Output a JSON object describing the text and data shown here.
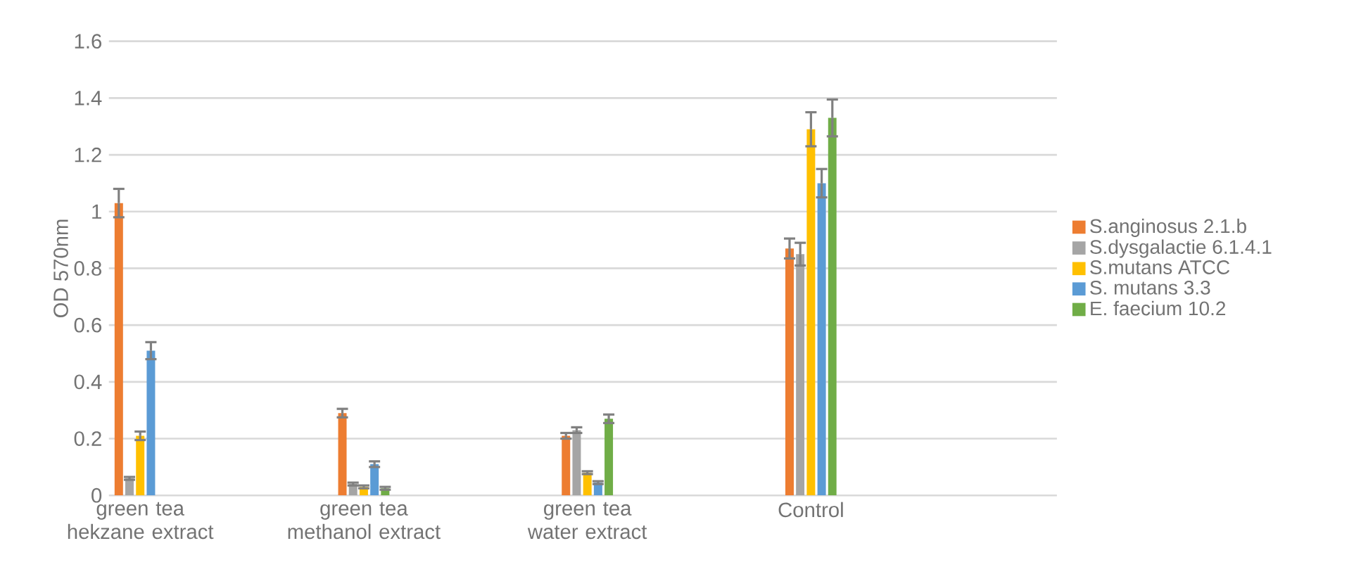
{
  "chart_data": {
    "type": "bar",
    "ylabel": "OD 570nm",
    "categories": [
      "green tea hekzane extract",
      "green tea methanol extract",
      "green tea water extract",
      "Control"
    ],
    "series": [
      {
        "name": "S.anginosus 2.1.b",
        "color": "#ed7d31",
        "values": [
          1.03,
          0.29,
          0.21,
          0.87
        ],
        "errors": [
          0.05,
          0.015,
          0.01,
          0.035
        ]
      },
      {
        "name": "S.dysgalactie 6.1.4.1",
        "color": "#a5a5a5",
        "values": [
          0.06,
          0.04,
          0.23,
          0.85
        ],
        "errors": [
          0.005,
          0.005,
          0.01,
          0.04
        ]
      },
      {
        "name": "S.mutans ATCC",
        "color": "#ffc000",
        "values": [
          0.21,
          0.03,
          0.08,
          1.29
        ],
        "errors": [
          0.015,
          0.005,
          0.005,
          0.06
        ]
      },
      {
        "name": "S. mutans 3.3",
        "color": "#5b9bd5",
        "values": [
          0.51,
          0.11,
          0.045,
          1.1
        ],
        "errors": [
          0.03,
          0.01,
          0.005,
          0.05
        ]
      },
      {
        "name": "E. faecium 10.2",
        "color": "#70ad47",
        "values": [
          null,
          0.025,
          0.27,
          1.33
        ],
        "errors": [
          null,
          0.005,
          0.015,
          0.065
        ]
      }
    ],
    "ylim": [
      0,
      1.6
    ],
    "yticks": [
      0,
      0.2,
      0.4,
      0.6,
      0.8,
      1,
      1.2,
      1.4,
      1.6
    ],
    "grid": "y",
    "legend": "right"
  }
}
